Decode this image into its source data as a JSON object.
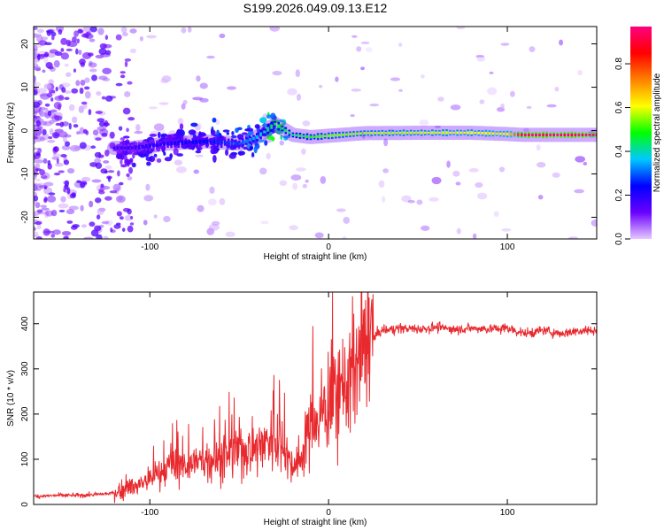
{
  "title": "S199.2026.049.09.13.E12",
  "chart_data": [
    {
      "type": "heatmap",
      "title": "S199.2026.049.09.13.E12",
      "xlabel": "Height of straight line (km)",
      "ylabel": "Frequency (Hz)",
      "xlim": [
        -165,
        150
      ],
      "ylim": [
        -25,
        24
      ],
      "xticks": [
        -100,
        0,
        100
      ],
      "yticks": [
        -20,
        -10,
        0,
        10,
        20
      ],
      "colorbar": {
        "label": "Normalized spectral amplitude",
        "range": [
          0,
          0.97
        ],
        "ticks": [
          0.0,
          0.2,
          0.4,
          0.6,
          0.8
        ],
        "tick_labels": [
          "0.0",
          "0.2",
          "0.4",
          "0.6",
          "0.8"
        ],
        "colors": [
          "#e6c8ff",
          "#6a00ff",
          "#0000ff",
          "#00c8ff",
          "#00ff00",
          "#ffff00",
          "#ff8000",
          "#ff0000",
          "#ff0080"
        ]
      },
      "ridge": [
        {
          "x": -110,
          "y": -4.0,
          "amplitude": 0.18
        },
        {
          "x": -90,
          "y": -3.0,
          "amplitude": 0.22
        },
        {
          "x": -70,
          "y": -2.5,
          "amplitude": 0.25
        },
        {
          "x": -50,
          "y": -3.0,
          "amplitude": 0.3
        },
        {
          "x": -40,
          "y": -1.5,
          "amplitude": 0.38
        },
        {
          "x": -30,
          "y": 1.5,
          "amplitude": 0.48
        },
        {
          "x": -20,
          "y": -1.0,
          "amplitude": 0.45
        },
        {
          "x": -10,
          "y": -1.5,
          "amplitude": 0.5
        },
        {
          "x": 0,
          "y": -1.2,
          "amplitude": 0.55
        },
        {
          "x": 20,
          "y": -0.6,
          "amplitude": 0.58
        },
        {
          "x": 50,
          "y": -0.5,
          "amplitude": 0.6
        },
        {
          "x": 80,
          "y": -0.5,
          "amplitude": 0.62
        },
        {
          "x": 100,
          "y": -0.8,
          "amplitude": 0.65
        },
        {
          "x": 110,
          "y": -1.0,
          "amplitude": 0.95
        },
        {
          "x": 150,
          "y": -1.0,
          "amplitude": 0.95
        }
      ]
    },
    {
      "type": "line",
      "xlabel": "Height of straight line (km)",
      "ylabel": "SNR (10 * v/v)",
      "xlim": [
        -165,
        150
      ],
      "ylim": [
        0,
        470
      ],
      "xticks": [
        -100,
        0,
        100
      ],
      "yticks": [
        0,
        100,
        200,
        300,
        400
      ],
      "series": [
        {
          "name": "SNR",
          "color": "#e8292e",
          "x": [
            -165,
            -150,
            -140,
            -130,
            -120,
            -110,
            -100,
            -90,
            -80,
            -70,
            -60,
            -50,
            -40,
            -30,
            -25,
            -20,
            -15,
            -10,
            -5,
            0,
            5,
            10,
            15,
            20,
            25,
            30,
            40,
            50,
            60,
            70,
            80,
            90,
            100,
            110,
            120,
            130,
            140,
            150
          ],
          "y": [
            18,
            20,
            20,
            22,
            25,
            38,
            55,
            80,
            90,
            95,
            100,
            120,
            130,
            150,
            130,
            80,
            110,
            180,
            190,
            230,
            250,
            270,
            300,
            340,
            370,
            385,
            390,
            388,
            392,
            388,
            390,
            388,
            390,
            378,
            385,
            378,
            385,
            385
          ]
        }
      ]
    }
  ]
}
